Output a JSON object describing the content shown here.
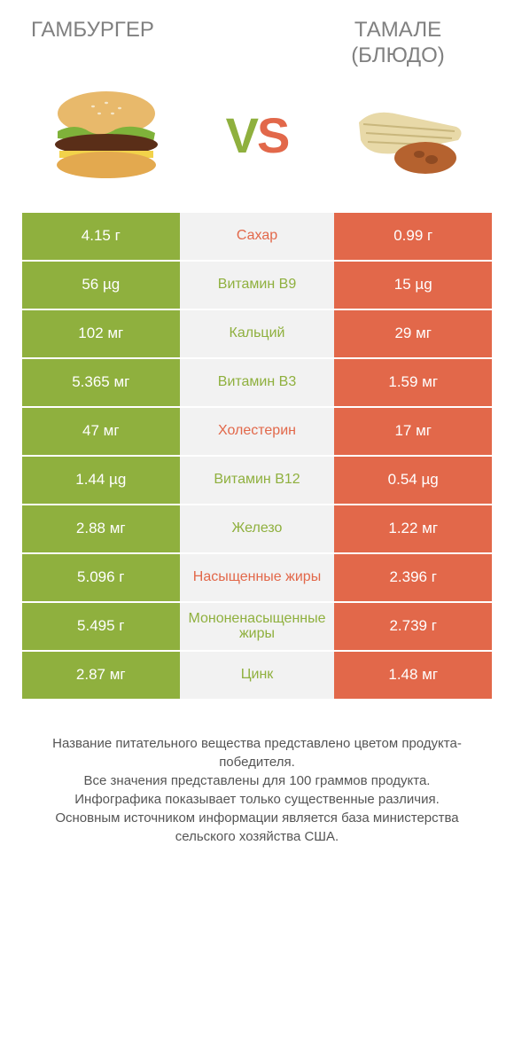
{
  "header": {
    "left": "ГАМБУРГЕР",
    "right_line1": "ТАМАЛЕ",
    "right_line2": "(БЛЮДО)"
  },
  "vs": {
    "v": "V",
    "s": "S"
  },
  "colors": {
    "left_bg": "#8fb03e",
    "right_bg": "#e2684a",
    "mid_bg": "#f2f2f2",
    "label_left": "#8fb03e",
    "label_right": "#e2684a",
    "header_text": "#808080",
    "footer_text": "#555555"
  },
  "rows": [
    {
      "label": "Сахар",
      "left": "4.15 г",
      "right": "0.99 г",
      "winner": "right"
    },
    {
      "label": "Витамин B9",
      "left": "56 µg",
      "right": "15 µg",
      "winner": "left"
    },
    {
      "label": "Кальций",
      "left": "102 мг",
      "right": "29 мг",
      "winner": "left"
    },
    {
      "label": "Витамин B3",
      "left": "5.365 мг",
      "right": "1.59 мг",
      "winner": "left"
    },
    {
      "label": "Холестерин",
      "left": "47 мг",
      "right": "17 мг",
      "winner": "right"
    },
    {
      "label": "Витамин B12",
      "left": "1.44 µg",
      "right": "0.54 µg",
      "winner": "left"
    },
    {
      "label": "Железо",
      "left": "2.88 мг",
      "right": "1.22 мг",
      "winner": "left"
    },
    {
      "label": "Насыщенные жиры",
      "left": "5.096 г",
      "right": "2.396 г",
      "winner": "right"
    },
    {
      "label": "Мононенасыщенные жиры",
      "left": "5.495 г",
      "right": "2.739 г",
      "winner": "left"
    },
    {
      "label": "Цинк",
      "left": "2.87 мг",
      "right": "1.48 мг",
      "winner": "left"
    }
  ],
  "footer": "Название питательного вещества представлено цветом продукта-победителя.\nВсе значения представлены для 100 граммов продукта.\nИнфографика показывает только существенные различия.\nОсновным источником информации является база министерства сельского хозяйства США."
}
